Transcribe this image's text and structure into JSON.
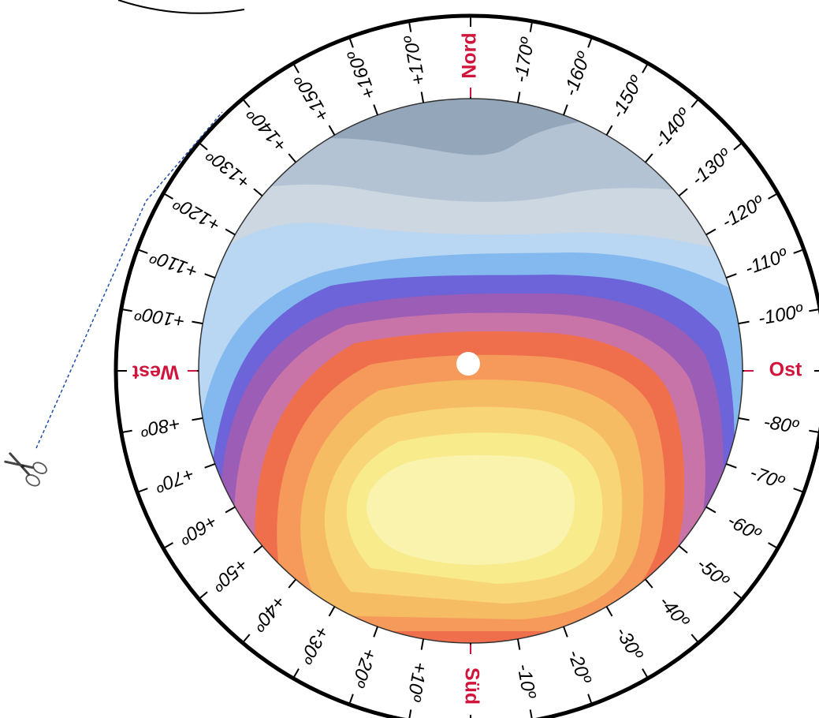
{
  "dial": {
    "cardinals": [
      {
        "id": "north",
        "label": "Nord",
        "angle": 180
      },
      {
        "id": "east",
        "label": "Ost",
        "angle": -90
      },
      {
        "id": "south",
        "label": "Süd",
        "angle": 0
      },
      {
        "id": "west",
        "label": "West",
        "angle": 90
      }
    ],
    "degree_labels": [
      {
        "text": "-10º",
        "angle": -10
      },
      {
        "text": "-20º",
        "angle": -20
      },
      {
        "text": "-30º",
        "angle": -30
      },
      {
        "text": "-40º",
        "angle": -40
      },
      {
        "text": "-50º",
        "angle": -50
      },
      {
        "text": "-60º",
        "angle": -60
      },
      {
        "text": "-70º",
        "angle": -70
      },
      {
        "text": "-80º",
        "angle": -80
      },
      {
        "text": "-100º",
        "angle": -100
      },
      {
        "text": "-110º",
        "angle": -110
      },
      {
        "text": "-120º",
        "angle": -120
      },
      {
        "text": "-130º",
        "angle": -130
      },
      {
        "text": "-140º",
        "angle": -140
      },
      {
        "text": "-150º",
        "angle": -150
      },
      {
        "text": "-160º",
        "angle": -160
      },
      {
        "text": "-170º",
        "angle": -170
      },
      {
        "text": "+10º",
        "angle": 10
      },
      {
        "text": "+20º",
        "angle": 20
      },
      {
        "text": "+30º",
        "angle": 30
      },
      {
        "text": "+40º",
        "angle": 40
      },
      {
        "text": "+50º",
        "angle": 50
      },
      {
        "text": "+60º",
        "angle": 60
      },
      {
        "text": "+70º",
        "angle": 70
      },
      {
        "text": "+80º",
        "angle": 80
      },
      {
        "text": "+100º",
        "angle": 100
      },
      {
        "text": "+110º",
        "angle": 110
      },
      {
        "text": "+120º",
        "angle": 120
      },
      {
        "text": "+130º",
        "angle": 130
      },
      {
        "text": "+140º",
        "angle": 140
      },
      {
        "text": "+150º",
        "angle": 150
      },
      {
        "text": "+160º",
        "angle": 160
      },
      {
        "text": "+170º",
        "angle": 170
      }
    ]
  },
  "icons": {
    "cut_line": "scissors-icon"
  },
  "colors": {
    "cardinal": "#d0143c",
    "cut_line": "#1f4ea8",
    "sky_bands": [
      "#94a7ba",
      "#b3c3d3",
      "#cdd7e1",
      "#b9d6f2",
      "#83b9ee",
      "#6c64d8",
      "#9b5db5",
      "#c874a8",
      "#ef6e4c",
      "#f59a5a",
      "#f6bc64",
      "#f8d576",
      "#f7eb8b",
      "#f9f3ad"
    ],
    "sun": "#ffffff"
  }
}
